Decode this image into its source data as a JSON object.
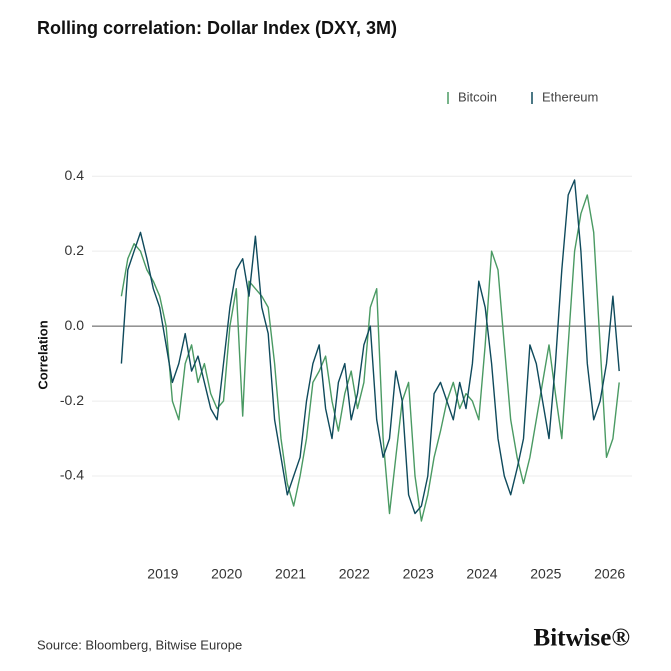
{
  "chart_data": {
    "type": "line",
    "title": "Rolling correlation: Dollar Index (DXY, 3M)",
    "y_label": "Correlation",
    "source": "Source: Bloomberg, Bitwise Europe",
    "logo": "Bitwise®",
    "legend": "top-right",
    "grid": true,
    "x": [
      2018.35,
      2018.45,
      2018.55,
      2018.65,
      2018.75,
      2018.85,
      2018.95,
      2019.05,
      2019.15,
      2019.25,
      2019.35,
      2019.45,
      2019.55,
      2019.65,
      2019.75,
      2019.85,
      2019.95,
      2020.05,
      2020.15,
      2020.25,
      2020.35,
      2020.45,
      2020.55,
      2020.65,
      2020.75,
      2020.85,
      2020.95,
      2021.05,
      2021.15,
      2021.25,
      2021.35,
      2021.45,
      2021.55,
      2021.65,
      2021.75,
      2021.85,
      2021.95,
      2022.05,
      2022.15,
      2022.25,
      2022.35,
      2022.45,
      2022.55,
      2022.65,
      2022.75,
      2022.85,
      2022.95,
      2023.05,
      2023.15,
      2023.25,
      2023.35,
      2023.45,
      2023.55,
      2023.65,
      2023.75,
      2023.85,
      2023.95,
      2024.05,
      2024.15,
      2024.25,
      2024.35,
      2024.45,
      2024.55,
      2024.65,
      2024.75,
      2024.85,
      2024.95,
      2025.05,
      2025.15,
      2025.25,
      2025.35,
      2025.45,
      2025.55,
      2025.65,
      2025.75,
      2025.85,
      2025.95,
      2026.05,
      2026.15
    ],
    "series": [
      {
        "name": "Bitcoin",
        "color": "#4a9a63",
        "values": [
          0.08,
          0.18,
          0.22,
          0.2,
          0.15,
          0.12,
          0.08,
          0.0,
          -0.2,
          -0.25,
          -0.1,
          -0.05,
          -0.15,
          -0.1,
          -0.18,
          -0.22,
          -0.2,
          0.0,
          0.1,
          -0.24,
          0.12,
          0.1,
          0.08,
          0.05,
          -0.1,
          -0.3,
          -0.42,
          -0.48,
          -0.4,
          -0.3,
          -0.15,
          -0.12,
          -0.08,
          -0.2,
          -0.28,
          -0.18,
          -0.12,
          -0.22,
          -0.15,
          0.05,
          0.1,
          -0.3,
          -0.5,
          -0.35,
          -0.2,
          -0.15,
          -0.4,
          -0.52,
          -0.45,
          -0.35,
          -0.28,
          -0.2,
          -0.15,
          -0.22,
          -0.18,
          -0.2,
          -0.25,
          -0.05,
          0.2,
          0.15,
          -0.05,
          -0.25,
          -0.35,
          -0.42,
          -0.35,
          -0.25,
          -0.15,
          -0.05,
          -0.18,
          -0.3,
          -0.05,
          0.2,
          0.3,
          0.35,
          0.25,
          -0.05,
          -0.35,
          -0.3,
          -0.15
        ]
      },
      {
        "name": "Ethereum",
        "color": "#0f4a5c",
        "values": [
          -0.1,
          0.15,
          0.2,
          0.25,
          0.18,
          0.1,
          0.05,
          -0.05,
          -0.15,
          -0.1,
          -0.02,
          -0.12,
          -0.08,
          -0.15,
          -0.22,
          -0.25,
          -0.1,
          0.05,
          0.15,
          0.18,
          0.08,
          0.24,
          0.05,
          -0.02,
          -0.25,
          -0.35,
          -0.45,
          -0.4,
          -0.35,
          -0.2,
          -0.1,
          -0.05,
          -0.22,
          -0.3,
          -0.15,
          -0.1,
          -0.25,
          -0.18,
          -0.05,
          0.0,
          -0.25,
          -0.35,
          -0.3,
          -0.12,
          -0.2,
          -0.45,
          -0.5,
          -0.48,
          -0.4,
          -0.18,
          -0.15,
          -0.2,
          -0.25,
          -0.15,
          -0.22,
          -0.1,
          0.12,
          0.05,
          -0.1,
          -0.3,
          -0.4,
          -0.45,
          -0.38,
          -0.3,
          -0.05,
          -0.1,
          -0.2,
          -0.3,
          -0.1,
          0.15,
          0.35,
          0.39,
          0.2,
          -0.1,
          -0.25,
          -0.2,
          -0.1,
          0.08,
          -0.12
        ]
      }
    ],
    "xlim": [
      2018.25,
      2026.35
    ],
    "xticks": [
      2019,
      2020,
      2021,
      2022,
      2023,
      2024,
      2025,
      2026
    ],
    "ylim": [
      -0.6,
      0.47
    ],
    "yticks": [
      0.4,
      0.2,
      {
        "value": 0,
        "label": "0.0"
      },
      -0.2,
      -0.4
    ]
  }
}
